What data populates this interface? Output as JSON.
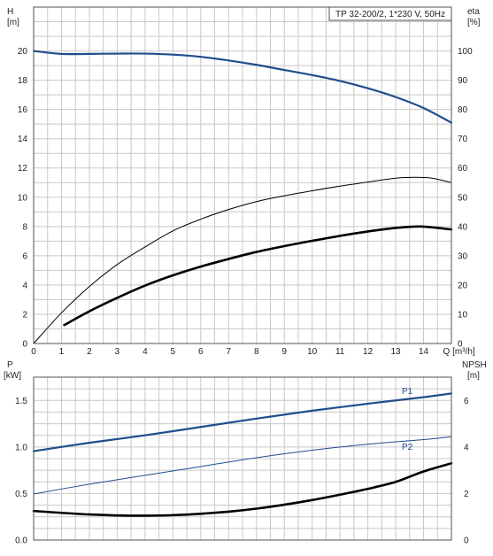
{
  "colors": {
    "curve_blue": "#1f4e8c",
    "curve_black": "#000000",
    "grid": "#c8c8c8",
    "frame": "#505050",
    "legend_bg": "#ffffff"
  },
  "chart_data": [
    {
      "type": "line",
      "legend": "TP 32-200/2, 1*230 V, 50Hz",
      "xlabel": "Q [m³/h]",
      "ylabel_left": "H",
      "ylabel_left_unit": "[m]",
      "ylabel_right": "eta",
      "ylabel_right_unit": "[%]",
      "xlim": [
        0,
        15
      ],
      "ylim_left": [
        0,
        23
      ],
      "ylim_right": [
        0,
        115
      ],
      "x_ticks": [
        0,
        1,
        2,
        3,
        4,
        5,
        6,
        7,
        8,
        9,
        10,
        11,
        12,
        13,
        14
      ],
      "y_ticks_left": [
        0,
        2,
        4,
        6,
        8,
        10,
        12,
        14,
        16,
        18,
        20
      ],
      "y_ticks_right": [
        0,
        10,
        20,
        30,
        40,
        50,
        60,
        70,
        80,
        90,
        100
      ],
      "grid": true,
      "series": [
        {
          "axis": "left",
          "color": "blue",
          "width": 2.2,
          "x": [
            0,
            1,
            2,
            3,
            4,
            5,
            6,
            7,
            8,
            9,
            10,
            11,
            12,
            13,
            14,
            15
          ],
          "y": [
            20,
            19.8,
            19.8,
            19.82,
            19.82,
            19.75,
            19.6,
            19.35,
            19.05,
            18.7,
            18.35,
            17.95,
            17.45,
            16.85,
            16.1,
            15.1
          ]
        },
        {
          "axis": "right",
          "color": "black",
          "width": 1,
          "x": [
            0,
            1,
            2,
            3,
            4,
            5,
            6,
            7,
            8,
            9,
            10,
            11,
            12,
            13,
            13.7,
            14.3,
            15
          ],
          "y": [
            0,
            10.5,
            19.5,
            27,
            33,
            38.5,
            42.5,
            45.8,
            48.5,
            50.5,
            52.2,
            53.8,
            55.2,
            56.5,
            56.8,
            56.5,
            55
          ]
        },
        {
          "axis": "right",
          "color": "black",
          "width": 2.6,
          "x": [
            1.1,
            2,
            3,
            4,
            5,
            6,
            7,
            8,
            9,
            10,
            11,
            12,
            13,
            13.9,
            15
          ],
          "y": [
            6.3,
            11,
            15.6,
            19.8,
            23.3,
            26.3,
            28.9,
            31.3,
            33.3,
            35.1,
            36.8,
            38.3,
            39.5,
            40,
            39
          ]
        }
      ]
    },
    {
      "type": "line",
      "xlabel": "",
      "ylabel_left": "P",
      "ylabel_left_unit": "[kW]",
      "ylabel_right": "NPSH",
      "ylabel_right_unit": "[m]",
      "xlim": [
        0,
        15
      ],
      "ylim_left": [
        0,
        1.75
      ],
      "ylim_right": [
        0,
        7
      ],
      "y_ticks_left": [
        0.0,
        0.5,
        1.0,
        1.5
      ],
      "y_tick_labels_left": [
        "0.0",
        "0.5",
        "1.0",
        "1.5"
      ],
      "y_ticks_right": [
        0,
        2,
        4,
        6
      ],
      "grid": true,
      "series": [
        {
          "name": "P1",
          "axis": "left",
          "color": "blue",
          "width": 2.2,
          "x": [
            0,
            2,
            4,
            6,
            8,
            10,
            12,
            14,
            15
          ],
          "y": [
            0.955,
            1.045,
            1.125,
            1.215,
            1.305,
            1.39,
            1.465,
            1.535,
            1.575
          ]
        },
        {
          "name": "P2",
          "axis": "left",
          "color": "blue",
          "width": 1,
          "x": [
            0,
            2,
            4,
            6,
            8,
            10,
            12,
            14,
            15
          ],
          "y": [
            0.495,
            0.6,
            0.695,
            0.79,
            0.885,
            0.965,
            1.03,
            1.08,
            1.11
          ]
        },
        {
          "axis": "right",
          "color": "black",
          "width": 2.6,
          "x": [
            0,
            1,
            2,
            3,
            4,
            5,
            6,
            7,
            8,
            9,
            10,
            11,
            12,
            13,
            14,
            15
          ],
          "y": [
            1.25,
            1.17,
            1.1,
            1.06,
            1.05,
            1.07,
            1.13,
            1.22,
            1.35,
            1.52,
            1.72,
            1.95,
            2.2,
            2.5,
            2.95,
            3.3
          ]
        }
      ]
    }
  ]
}
